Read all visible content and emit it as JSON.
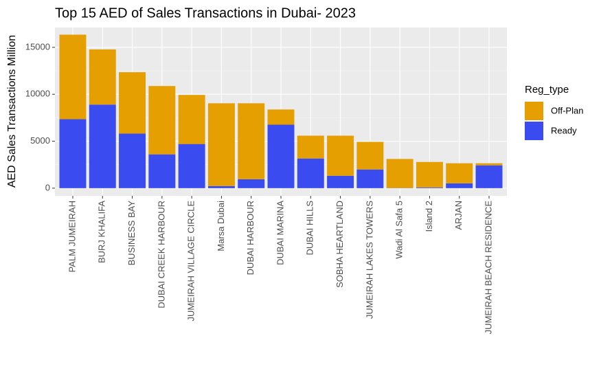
{
  "chart_data": {
    "type": "stacked_bar",
    "title": "Top 15 AED of Sales Transactions in Dubai- 2023",
    "y_label": "AED Sales Transactions Million",
    "legend_title": "Reg_type",
    "categories": [
      "PALM JUMEIRAH",
      "BURJ KHALIFA",
      "BUSINESS BAY",
      "DUBAI CREEK HARBOUR",
      "JUMEIRAH VILLAGE CIRCLE",
      "Marsa Dubai",
      "DUBAI HARBOUR",
      "DUBAI MARINA",
      "DUBAI HILLS",
      "SOBHA HEARTLAND",
      "JUMEIRAH LAKES TOWERS",
      "Wadi Al Safa 5",
      "Island 2",
      "ARJAN",
      "JUMEIRAH BEACH RESIDENCE"
    ],
    "series": [
      {
        "name": "Off-Plan",
        "color": "#E69F00",
        "values": [
          9000,
          5880,
          6540,
          7280,
          5230,
          8820,
          8090,
          1620,
          2430,
          4270,
          2940,
          3090,
          2720,
          2140,
          220
        ]
      },
      {
        "name": "Ready",
        "color": "#3A4BF0",
        "values": [
          7350,
          8900,
          5810,
          3600,
          4700,
          220,
          950,
          6760,
          3160,
          1320,
          1990,
          20,
          70,
          510,
          2430
        ]
      }
    ],
    "ylim": [
      -815,
      17115
    ],
    "yticks": [
      0,
      5000,
      10000,
      15000
    ],
    "grid": true,
    "legend_position": "right"
  }
}
